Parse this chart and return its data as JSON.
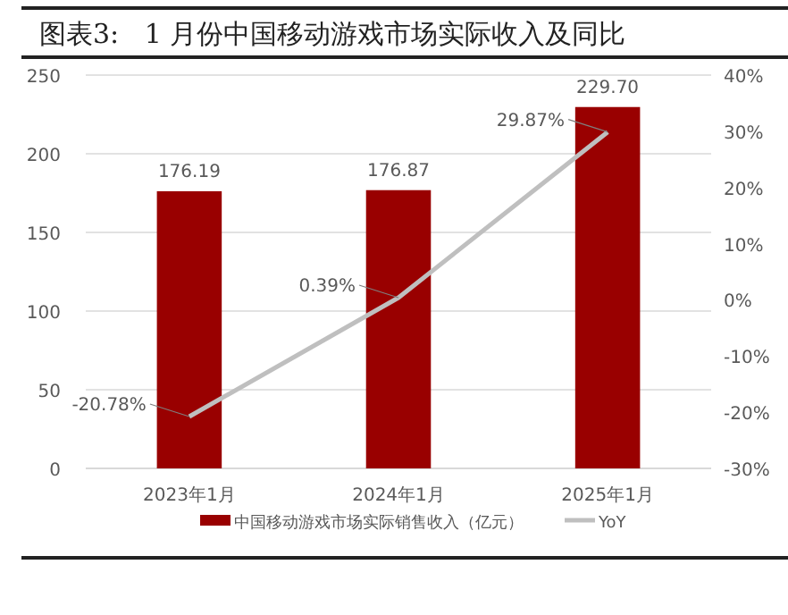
{
  "chart_data": {
    "type": "bar",
    "title": "图表3:   1 月份中国移动游戏市场实际收入及同比",
    "categories": [
      "2023年1月",
      "2024年1月",
      "2025年1月"
    ],
    "series": [
      {
        "name": "中国移动游戏市场实际销售收入（亿元）",
        "color": "#990000",
        "values": [
          176.19,
          176.87,
          229.7
        ],
        "value_labels": [
          "176.19",
          "176.87",
          "229.70"
        ]
      },
      {
        "name": "YoY",
        "type": "line",
        "axis": "y2",
        "color": "#bfbfbf",
        "values": [
          -20.78,
          0.39,
          29.87
        ],
        "value_labels": [
          "-20.78%",
          "0.39%",
          "29.87%"
        ]
      }
    ],
    "ylim": [
      0,
      250
    ],
    "yticks": [
      0,
      50,
      100,
      150,
      200,
      250
    ],
    "y2lim": [
      -30,
      40
    ],
    "y2ticks": [
      {
        "value": -30,
        "label": "-30%"
      },
      {
        "value": -20,
        "label": "-20%"
      },
      {
        "value": -10,
        "label": "-10%"
      },
      {
        "value": 0,
        "label": "0%"
      },
      {
        "value": 10,
        "label": "10%"
      },
      {
        "value": 20,
        "label": "20%"
      },
      {
        "value": 30,
        "label": "30%"
      },
      {
        "value": 40,
        "label": "40%"
      }
    ],
    "grid": "y",
    "legend": "bottom",
    "marker": "none",
    "line_style": "solid"
  }
}
